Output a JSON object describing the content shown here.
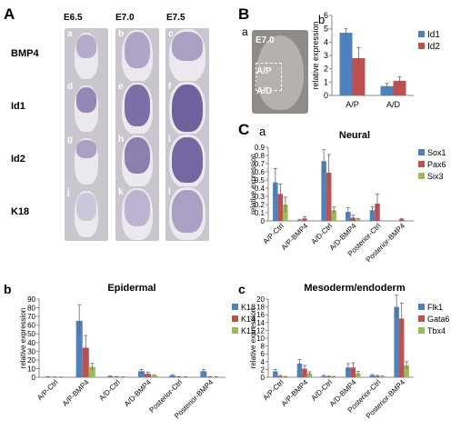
{
  "panelA": {
    "label": "A",
    "stages": [
      "E6.5",
      "E7.0",
      "E7.5"
    ],
    "rows": [
      {
        "name": "BMP4",
        "letters": [
          "a",
          "b",
          "c"
        ]
      },
      {
        "name": "Id1",
        "letters": [
          "d",
          "e",
          "f"
        ]
      },
      {
        "name": "Id2",
        "letters": [
          "g",
          "h",
          "i"
        ]
      },
      {
        "name": "K18",
        "letters": [
          "j",
          "k",
          "l"
        ]
      }
    ]
  },
  "panelB": {
    "label": "B",
    "a_label": "a",
    "b_label": "b",
    "photo_stage": "E7.0",
    "region1": "A/P",
    "region2": "A/D"
  },
  "panelC": {
    "label": "C",
    "a_label": "a"
  },
  "panelAb": {
    "label": "b"
  },
  "panelCc": {
    "label": "c"
  },
  "chart_data": [
    {
      "id": "Bb",
      "type": "bar",
      "title": "",
      "ylabel": "relative expression",
      "categories": [
        "A/P",
        "A/D"
      ],
      "ylim": [
        0,
        6
      ],
      "yticks": [
        0,
        1,
        2,
        3,
        4,
        5,
        6
      ],
      "legend": "right",
      "series": [
        {
          "name": "Id1",
          "color": "#4f81bd",
          "values": [
            4.7,
            0.7
          ],
          "errors": [
            0.3,
            0.2
          ]
        },
        {
          "name": "Id2",
          "color": "#c0504d",
          "values": [
            2.8,
            1.1
          ],
          "errors": [
            0.8,
            0.3
          ]
        }
      ]
    },
    {
      "id": "Ca",
      "type": "bar",
      "title": "Neural",
      "ylabel": "relative expression",
      "categories": [
        "A/P-Ctrl",
        "A/P-BMP4",
        "A/D-Ctrl",
        "A/D-BMP4",
        "Posterior-Ctrl",
        "Posterior-BMP4"
      ],
      "ylim": [
        0,
        0.9
      ],
      "yticks": [
        0,
        0.1,
        0.2,
        0.3,
        0.4,
        0.5,
        0.6,
        0.7,
        0.8,
        0.9
      ],
      "legend": "right",
      "series": [
        {
          "name": "Sox1",
          "color": "#4f81bd",
          "values": [
            0.47,
            0.01,
            0.73,
            0.11,
            0.13,
            0.0
          ],
          "errors": [
            0.17,
            0.01,
            0.14,
            0.05,
            0.04,
            0.0
          ]
        },
        {
          "name": "Pax6",
          "color": "#c0504d",
          "values": [
            0.33,
            0.03,
            0.59,
            0.04,
            0.21,
            0.02
          ],
          "errors": [
            0.12,
            0.02,
            0.22,
            0.03,
            0.12,
            0.01
          ]
        },
        {
          "name": "Six3",
          "color": "#9bbb59",
          "values": [
            0.2,
            0.0,
            0.13,
            0.02,
            0.0,
            0.0
          ],
          "errors": [
            0.09,
            0.0,
            0.04,
            0.01,
            0.0,
            0.0
          ]
        }
      ]
    },
    {
      "id": "Ab",
      "type": "bar",
      "title": "Epidermal",
      "ylabel": "relative expression",
      "categories": [
        "A/P-Ctrl",
        "A/P-BMP4",
        "A/D-Ctrl",
        "A/D-BMP4",
        "Posterior-Ctrl",
        "Posterior-BMP4"
      ],
      "ylim": [
        0,
        90
      ],
      "yticks": [
        0,
        10,
        20,
        30,
        40,
        50,
        60,
        70,
        80,
        90
      ],
      "legend": "right",
      "series": [
        {
          "name": "K18",
          "color": "#4f81bd",
          "values": [
            0.5,
            65,
            1,
            7,
            2,
            7
          ],
          "errors": [
            0.2,
            18,
            0.5,
            2,
            1,
            2
          ]
        },
        {
          "name": "K14",
          "color": "#c0504d",
          "values": [
            0.3,
            34,
            0.5,
            4,
            0.5,
            0.5
          ],
          "errors": [
            0.1,
            14,
            0.3,
            2,
            0.3,
            0.3
          ]
        },
        {
          "name": "K15",
          "color": "#9bbb59",
          "values": [
            0.2,
            12,
            0.3,
            2,
            0.3,
            0.3
          ],
          "errors": [
            0.1,
            4,
            0.2,
            1,
            0.2,
            0.2
          ]
        }
      ]
    },
    {
      "id": "Cc",
      "type": "bar",
      "title": "Mesoderm/endoderm",
      "ylabel": "relative expression",
      "categories": [
        "A/P-Ctrl",
        "A/P-BMP4",
        "A/D-Ctrl",
        "A/D-BMP4",
        "Posterior-Ctrl",
        "Posterior-BMP4"
      ],
      "ylim": [
        0,
        20
      ],
      "yticks": [
        0,
        2,
        4,
        6,
        8,
        10,
        12,
        14,
        16,
        18,
        20
      ],
      "legend": "right",
      "series": [
        {
          "name": "Flk1",
          "color": "#4f81bd",
          "values": [
            1.5,
            3.5,
            0.3,
            2.5,
            0.5,
            18
          ],
          "errors": [
            0.5,
            1,
            0.2,
            1,
            0.2,
            3
          ]
        },
        {
          "name": "Gata6",
          "color": "#c0504d",
          "values": [
            0.3,
            2.2,
            0.2,
            2.5,
            0.3,
            15
          ],
          "errors": [
            0.2,
            0.8,
            0.1,
            1.2,
            0.2,
            4
          ]
        },
        {
          "name": "Tbx4",
          "color": "#9bbb59",
          "values": [
            0.1,
            1.0,
            0.1,
            1.0,
            0.2,
            3
          ],
          "errors": [
            0.1,
            0.4,
            0.1,
            0.5,
            0.1,
            1
          ]
        }
      ]
    }
  ]
}
